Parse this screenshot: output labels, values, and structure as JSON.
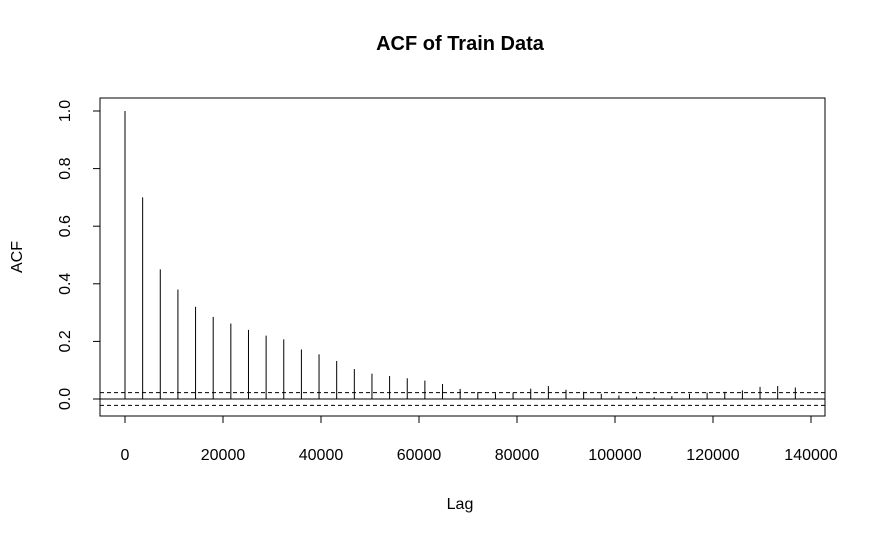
{
  "chart_data": {
    "type": "bar",
    "title": "ACF of Train Data",
    "xlabel": "Lag",
    "ylabel": "ACF",
    "xlim": [
      -5000,
      142000
    ],
    "ylim": [
      -0.06,
      1.04
    ],
    "x_ticks": [
      0,
      20000,
      40000,
      60000,
      80000,
      100000,
      120000,
      140000
    ],
    "x_tick_labels": [
      "0",
      "20000",
      "40000",
      "60000",
      "80000",
      "100000",
      "120000",
      "140000"
    ],
    "y_ticks": [
      0.0,
      0.2,
      0.4,
      0.6,
      0.8,
      1.0
    ],
    "y_tick_labels": [
      "0.0",
      "0.2",
      "0.4",
      "0.6",
      "0.8",
      "1.0"
    ],
    "confidence_bound": 0.022,
    "grid": false,
    "x": [
      0,
      3600,
      7200,
      10800,
      14400,
      18000,
      21600,
      25200,
      28800,
      32400,
      36000,
      39600,
      43200,
      46800,
      50400,
      54000,
      57600,
      61200,
      64800,
      68400,
      72000,
      75600,
      79200,
      82800,
      86400,
      90000,
      93600,
      97200,
      100800,
      104400,
      108000,
      111600,
      115200,
      118800,
      122400,
      126000,
      129600,
      133200,
      136800
    ],
    "values": [
      1.0,
      0.7,
      0.45,
      0.38,
      0.32,
      0.285,
      0.262,
      0.24,
      0.22,
      0.207,
      0.172,
      0.155,
      0.132,
      0.104,
      0.088,
      0.08,
      0.072,
      0.064,
      0.052,
      0.035,
      0.024,
      0.02,
      0.022,
      0.036,
      0.045,
      0.032,
      0.025,
      0.018,
      0.012,
      0.008,
      0.006,
      0.01,
      0.018,
      0.022,
      0.025,
      0.03,
      0.042,
      0.045,
      0.04
    ]
  }
}
